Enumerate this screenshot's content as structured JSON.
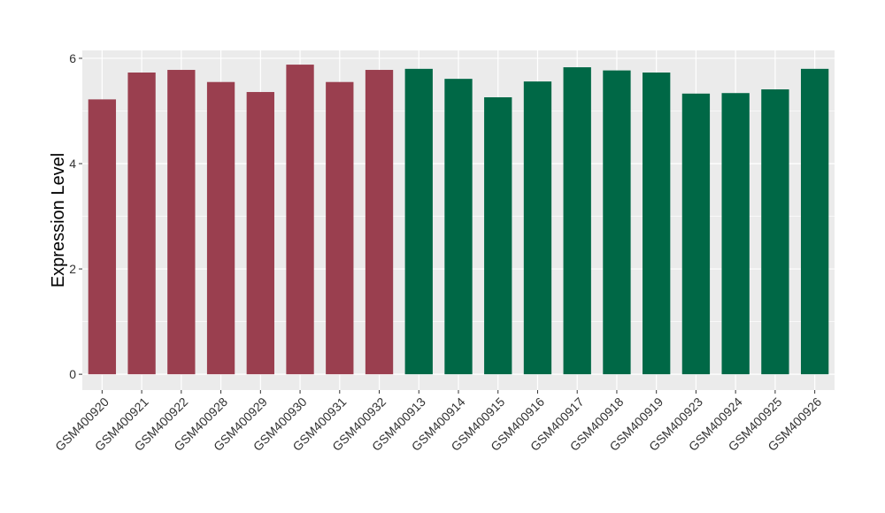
{
  "chart_data": {
    "type": "bar",
    "title": "",
    "xlabel": "",
    "ylabel": "Expression Level",
    "ylim": [
      -0.3,
      6.15
    ],
    "yticks": [
      0,
      2,
      4,
      6
    ],
    "grid": true,
    "legend": "none",
    "colors": {
      "group1": "#9a3f4f",
      "group2": "#006846",
      "panel": "#ebebeb",
      "grid": "#ffffff"
    },
    "categories": [
      "GSM400920",
      "GSM400921",
      "GSM400922",
      "GSM400928",
      "GSM400929",
      "GSM400930",
      "GSM400931",
      "GSM400932",
      "GSM400913",
      "GSM400914",
      "GSM400915",
      "GSM400916",
      "GSM400917",
      "GSM400918",
      "GSM400919",
      "GSM400923",
      "GSM400924",
      "GSM400925",
      "GSM400926"
    ],
    "values": [
      5.22,
      5.73,
      5.78,
      5.55,
      5.36,
      5.88,
      5.55,
      5.78,
      5.8,
      5.61,
      5.26,
      5.56,
      5.83,
      5.77,
      5.73,
      5.33,
      5.34,
      5.41,
      5.8
    ],
    "groups": [
      1,
      1,
      1,
      1,
      1,
      1,
      1,
      1,
      2,
      2,
      2,
      2,
      2,
      2,
      2,
      2,
      2,
      2,
      2
    ]
  }
}
